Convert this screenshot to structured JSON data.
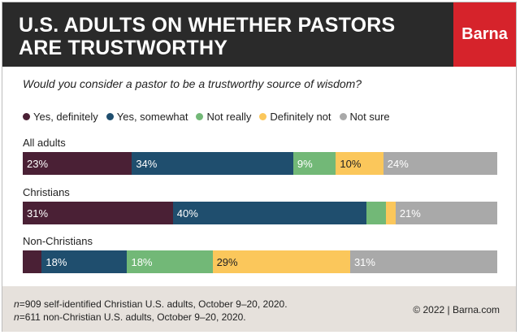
{
  "header": {
    "title_line1": "U.S. ADULTS ON WHETHER PASTORS",
    "title_line2": "ARE TRUSTWORTHY",
    "brand": "Barna"
  },
  "colors": {
    "header_bg": "#2a2a2a",
    "brand_bg": "#d6232b",
    "footer_bg": "#e6e1dc"
  },
  "chart_data": {
    "type": "bar",
    "orientation": "horizontal-stacked",
    "title": "U.S. ADULTS ON WHETHER PASTORS ARE TRUSTWORTHY",
    "subtitle": "Would you consider a pastor to be a trustworthy source of wisdom?",
    "unit": "%",
    "legend_placement": "top-left",
    "categories": [
      "All adults",
      "Christians",
      "Non-Christians"
    ],
    "series": [
      {
        "name": "Yes, definitely",
        "color": "#4a2035",
        "values": [
          23,
          31,
          4
        ]
      },
      {
        "name": "Yes, somewhat",
        "color": "#1f4e6e",
        "values": [
          34,
          40,
          18
        ]
      },
      {
        "name": "Not really",
        "color": "#72b877",
        "values": [
          9,
          4,
          18
        ]
      },
      {
        "name": "Definitely not",
        "color": "#fbc75b",
        "values": [
          10,
          2,
          29
        ]
      },
      {
        "name": "Not sure",
        "color": "#a9a9a9",
        "values": [
          24,
          21,
          31
        ]
      }
    ],
    "data_labels": [
      [
        "23%",
        "34%",
        "9%",
        "10%",
        "24%"
      ],
      [
        "31%",
        "40%",
        "",
        "",
        "21%"
      ],
      [
        "",
        "18%",
        "18%",
        "29%",
        "31%"
      ]
    ]
  },
  "footer": {
    "note1_n": "n",
    "note1_text": "=909 self-identified Christian U.S. adults, October 9–20, 2020.",
    "note2_n": "n",
    "note2_text": "=611 non-Christian U.S. adults, October 9–20, 2020.",
    "credit": "© 2022 |  Barna.com"
  }
}
